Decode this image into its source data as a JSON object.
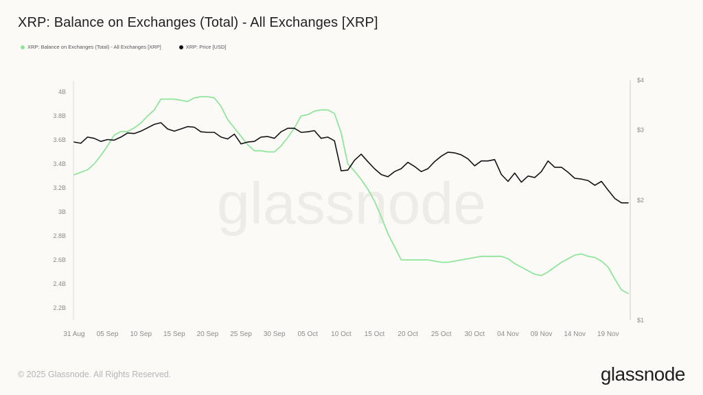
{
  "page": {
    "title": "XRP: Balance on Exchanges (Total) - All Exchanges [XRP]",
    "footer": "© 2025 Glassnode. All Rights Reserved.",
    "brand": "glassnode",
    "watermark": "glassnode"
  },
  "colors": {
    "balance": "#8fe59a",
    "price": "#111111",
    "axis_text": "#8a8a8a",
    "watermark": "#eeece6"
  },
  "chart_data": {
    "type": "line",
    "title": "XRP: Balance on Exchanges (Total) - All Exchanges [XRP]",
    "legend": {
      "placement": "top-left",
      "entries": [
        "XRP: Balance on Exchanges (Total) - All Exchanges [XRP]",
        "XRP: Price [USD]"
      ]
    },
    "grid": false,
    "x_range": [
      "2025-08-31",
      "2025-11-22"
    ],
    "x_ticks": [
      "31 Aug",
      "05 Sep",
      "10 Sep",
      "15 Sep",
      "20 Sep",
      "25 Sep",
      "30 Sep",
      "05 Oct",
      "10 Oct",
      "15 Oct",
      "20 Oct",
      "25 Oct",
      "30 Oct",
      "04 Nov",
      "09 Nov",
      "14 Nov",
      "19 Nov"
    ],
    "y_left": {
      "ticks": [
        "4B",
        "3.8B",
        "3.6B",
        "3.4B",
        "3.2B",
        "3B",
        "2.8B",
        "2.6B",
        "2.4B",
        "2.2B"
      ],
      "range": [
        2.2,
        4.0
      ]
    },
    "y_right": {
      "ticks": [
        "$4",
        "$3",
        "$2",
        "$1"
      ],
      "scale": "log",
      "range": [
        1,
        4
      ]
    },
    "series": [
      {
        "name": "XRP: Balance on Exchanges (Total) - All Exchanges [XRP]",
        "axis": "left",
        "unit": "B XRP",
        "points": [
          [
            "2025-08-31",
            3.31
          ],
          [
            "2025-09-02",
            3.35
          ],
          [
            "2025-09-03",
            3.4
          ],
          [
            "2025-09-04",
            3.47
          ],
          [
            "2025-09-05",
            3.55
          ],
          [
            "2025-09-06",
            3.64
          ],
          [
            "2025-09-07",
            3.67
          ],
          [
            "2025-09-08",
            3.67
          ],
          [
            "2025-09-09",
            3.7
          ],
          [
            "2025-09-10",
            3.74
          ],
          [
            "2025-09-11",
            3.8
          ],
          [
            "2025-09-12",
            3.85
          ],
          [
            "2025-09-13",
            3.94
          ],
          [
            "2025-09-14",
            3.94
          ],
          [
            "2025-09-15",
            3.94
          ],
          [
            "2025-09-16",
            3.93
          ],
          [
            "2025-09-17",
            3.92
          ],
          [
            "2025-09-18",
            3.95
          ],
          [
            "2025-09-19",
            3.96
          ],
          [
            "2025-09-20",
            3.96
          ],
          [
            "2025-09-21",
            3.95
          ],
          [
            "2025-09-22",
            3.88
          ],
          [
            "2025-09-23",
            3.77
          ],
          [
            "2025-09-24",
            3.7
          ],
          [
            "2025-09-25",
            3.63
          ],
          [
            "2025-09-26",
            3.56
          ],
          [
            "2025-09-27",
            3.51
          ],
          [
            "2025-09-28",
            3.51
          ],
          [
            "2025-09-29",
            3.5
          ],
          [
            "2025-09-30",
            3.5
          ],
          [
            "2025-10-01",
            3.55
          ],
          [
            "2025-10-02",
            3.62
          ],
          [
            "2025-10-03",
            3.7
          ],
          [
            "2025-10-04",
            3.8
          ],
          [
            "2025-10-05",
            3.81
          ],
          [
            "2025-10-06",
            3.84
          ],
          [
            "2025-10-07",
            3.85
          ],
          [
            "2025-10-08",
            3.85
          ],
          [
            "2025-10-09",
            3.82
          ],
          [
            "2025-10-10",
            3.66
          ],
          [
            "2025-10-11",
            3.4
          ],
          [
            "2025-10-12",
            3.34
          ],
          [
            "2025-10-13",
            3.27
          ],
          [
            "2025-10-14",
            3.19
          ],
          [
            "2025-10-15",
            3.09
          ],
          [
            "2025-10-16",
            2.96
          ],
          [
            "2025-10-17",
            2.82
          ],
          [
            "2025-10-18",
            2.71
          ],
          [
            "2025-10-19",
            2.6
          ],
          [
            "2025-10-20",
            2.6
          ],
          [
            "2025-10-21",
            2.6
          ],
          [
            "2025-10-22",
            2.6
          ],
          [
            "2025-10-23",
            2.6
          ],
          [
            "2025-10-24",
            2.59
          ],
          [
            "2025-10-25",
            2.58
          ],
          [
            "2025-10-26",
            2.58
          ],
          [
            "2025-10-27",
            2.59
          ],
          [
            "2025-10-28",
            2.6
          ],
          [
            "2025-10-29",
            2.61
          ],
          [
            "2025-10-30",
            2.62
          ],
          [
            "2025-10-31",
            2.63
          ],
          [
            "2025-11-01",
            2.63
          ],
          [
            "2025-11-02",
            2.63
          ],
          [
            "2025-11-03",
            2.63
          ],
          [
            "2025-11-04",
            2.61
          ],
          [
            "2025-11-05",
            2.57
          ],
          [
            "2025-11-06",
            2.54
          ],
          [
            "2025-11-07",
            2.51
          ],
          [
            "2025-11-08",
            2.48
          ],
          [
            "2025-11-09",
            2.47
          ],
          [
            "2025-11-10",
            2.5
          ],
          [
            "2025-11-11",
            2.54
          ],
          [
            "2025-11-12",
            2.58
          ],
          [
            "2025-11-13",
            2.61
          ],
          [
            "2025-11-14",
            2.64
          ],
          [
            "2025-11-15",
            2.65
          ],
          [
            "2025-11-16",
            2.63
          ],
          [
            "2025-11-17",
            2.62
          ],
          [
            "2025-11-18",
            2.59
          ],
          [
            "2025-11-19",
            2.54
          ],
          [
            "2025-11-20",
            2.44
          ],
          [
            "2025-11-21",
            2.35
          ],
          [
            "2025-11-22",
            2.32
          ]
        ]
      },
      {
        "name": "XRP: Price [USD]",
        "axis": "right",
        "unit": "USD",
        "points": [
          [
            "2025-08-31",
            2.8
          ],
          [
            "2025-09-01",
            2.78
          ],
          [
            "2025-09-02",
            2.88
          ],
          [
            "2025-09-03",
            2.86
          ],
          [
            "2025-09-04",
            2.81
          ],
          [
            "2025-09-05",
            2.84
          ],
          [
            "2025-09-06",
            2.83
          ],
          [
            "2025-09-07",
            2.88
          ],
          [
            "2025-09-08",
            2.95
          ],
          [
            "2025-09-09",
            2.94
          ],
          [
            "2025-09-10",
            2.98
          ],
          [
            "2025-09-11",
            3.04
          ],
          [
            "2025-09-12",
            3.1
          ],
          [
            "2025-09-13",
            3.13
          ],
          [
            "2025-09-14",
            3.02
          ],
          [
            "2025-09-15",
            2.98
          ],
          [
            "2025-09-16",
            3.02
          ],
          [
            "2025-09-17",
            3.06
          ],
          [
            "2025-09-18",
            3.05
          ],
          [
            "2025-09-19",
            2.97
          ],
          [
            "2025-09-20",
            2.96
          ],
          [
            "2025-09-21",
            2.96
          ],
          [
            "2025-09-22",
            2.88
          ],
          [
            "2025-09-23",
            2.85
          ],
          [
            "2025-09-24",
            2.93
          ],
          [
            "2025-09-25",
            2.77
          ],
          [
            "2025-09-26",
            2.8
          ],
          [
            "2025-09-27",
            2.81
          ],
          [
            "2025-09-28",
            2.88
          ],
          [
            "2025-09-29",
            2.89
          ],
          [
            "2025-09-30",
            2.86
          ],
          [
            "2025-10-01",
            2.97
          ],
          [
            "2025-10-02",
            3.03
          ],
          [
            "2025-10-03",
            3.03
          ],
          [
            "2025-10-04",
            2.96
          ],
          [
            "2025-10-05",
            2.97
          ],
          [
            "2025-10-06",
            2.99
          ],
          [
            "2025-10-07",
            2.86
          ],
          [
            "2025-10-08",
            2.88
          ],
          [
            "2025-10-09",
            2.82
          ],
          [
            "2025-10-10",
            2.37
          ],
          [
            "2025-10-11",
            2.38
          ],
          [
            "2025-10-12",
            2.52
          ],
          [
            "2025-10-13",
            2.61
          ],
          [
            "2025-10-14",
            2.5
          ],
          [
            "2025-10-15",
            2.4
          ],
          [
            "2025-10-16",
            2.32
          ],
          [
            "2025-10-17",
            2.29
          ],
          [
            "2025-10-18",
            2.36
          ],
          [
            "2025-10-19",
            2.4
          ],
          [
            "2025-10-20",
            2.49
          ],
          [
            "2025-10-21",
            2.43
          ],
          [
            "2025-10-22",
            2.36
          ],
          [
            "2025-10-23",
            2.4
          ],
          [
            "2025-10-24",
            2.5
          ],
          [
            "2025-10-25",
            2.58
          ],
          [
            "2025-10-26",
            2.64
          ],
          [
            "2025-10-27",
            2.63
          ],
          [
            "2025-10-28",
            2.6
          ],
          [
            "2025-10-29",
            2.54
          ],
          [
            "2025-10-30",
            2.44
          ],
          [
            "2025-10-31",
            2.51
          ],
          [
            "2025-11-01",
            2.51
          ],
          [
            "2025-11-02",
            2.53
          ],
          [
            "2025-11-03",
            2.32
          ],
          [
            "2025-11-04",
            2.23
          ],
          [
            "2025-11-05",
            2.34
          ],
          [
            "2025-11-06",
            2.22
          ],
          [
            "2025-11-07",
            2.3
          ],
          [
            "2025-11-08",
            2.28
          ],
          [
            "2025-11-09",
            2.36
          ],
          [
            "2025-11-10",
            2.51
          ],
          [
            "2025-11-11",
            2.42
          ],
          [
            "2025-11-12",
            2.42
          ],
          [
            "2025-11-13",
            2.35
          ],
          [
            "2025-11-14",
            2.27
          ],
          [
            "2025-11-15",
            2.26
          ],
          [
            "2025-11-16",
            2.24
          ],
          [
            "2025-11-17",
            2.18
          ],
          [
            "2025-11-18",
            2.23
          ],
          [
            "2025-11-19",
            2.12
          ],
          [
            "2025-11-20",
            2.02
          ],
          [
            "2025-11-21",
            1.97
          ],
          [
            "2025-11-22",
            1.97
          ]
        ]
      }
    ]
  }
}
